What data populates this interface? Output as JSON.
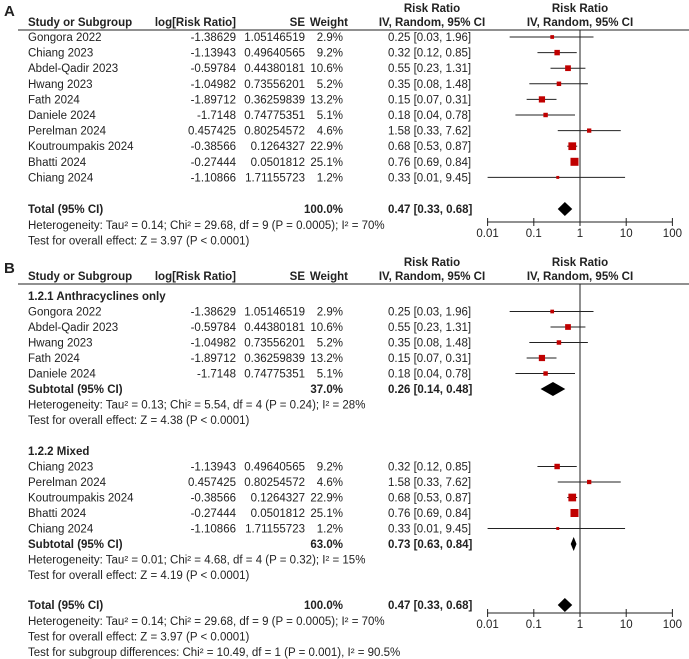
{
  "colors": {
    "marker": "#c00000",
    "diamond": "#000000",
    "line": "#222222"
  },
  "headers": {
    "study": "Study or Subgroup",
    "logrr": "log[Risk Ratio]",
    "se": "SE",
    "weight": "Weight",
    "rr_top": "Risk Ratio",
    "rr_bottom": "IV, Random, 95% CI",
    "plot_top": "Risk Ratio",
    "plot_bottom": "IV, Random, 95% CI"
  },
  "chart_data": [
    {
      "type": "forest",
      "panel": "A",
      "x_scale": "log",
      "xlim": [
        0.01,
        100
      ],
      "xticks": [
        "0.01",
        "0.1",
        "1",
        "10",
        "100"
      ],
      "reference_line": 1,
      "rows": [
        {
          "study": "Gongora 2022",
          "logrr": "-1.38629",
          "se": "1.05146519",
          "weight": "2.9%",
          "ci": "0.25 [0.03, 1.96]",
          "rr": 0.25,
          "lo": 0.03,
          "hi": 1.96
        },
        {
          "study": "Chiang 2023",
          "logrr": "-1.13943",
          "se": "0.49640565",
          "weight": "9.2%",
          "ci": "0.32 [0.12, 0.85]",
          "rr": 0.32,
          "lo": 0.12,
          "hi": 0.85
        },
        {
          "study": "Abdel-Qadir 2023",
          "logrr": "-0.59784",
          "se": "0.44380181",
          "weight": "10.6%",
          "ci": "0.55 [0.23, 1.31]",
          "rr": 0.55,
          "lo": 0.23,
          "hi": 1.31
        },
        {
          "study": "Hwang 2023",
          "logrr": "-1.04982",
          "se": "0.73556201",
          "weight": "5.2%",
          "ci": "0.35 [0.08, 1.48]",
          "rr": 0.35,
          "lo": 0.08,
          "hi": 1.48
        },
        {
          "study": "Fath 2024",
          "logrr": "-1.89712",
          "se": "0.36259839",
          "weight": "13.2%",
          "ci": "0.15 [0.07, 0.31]",
          "rr": 0.15,
          "lo": 0.07,
          "hi": 0.31
        },
        {
          "study": "Daniele 2024",
          "logrr": "-1.7148",
          "se": "0.74775351",
          "weight": "5.1%",
          "ci": "0.18 [0.04, 0.78]",
          "rr": 0.18,
          "lo": 0.04,
          "hi": 0.78
        },
        {
          "study": "Perelman 2024",
          "logrr": "0.457425",
          "se": "0.80254572",
          "weight": "4.6%",
          "ci": "1.58 [0.33, 7.62]",
          "rr": 1.58,
          "lo": 0.33,
          "hi": 7.62
        },
        {
          "study": "Koutroumpakis 2024",
          "logrr": "-0.38566",
          "se": "0.1264327",
          "weight": "22.9%",
          "ci": "0.68 [0.53, 0.87]",
          "rr": 0.68,
          "lo": 0.53,
          "hi": 0.87
        },
        {
          "study": "Bhatti 2024",
          "logrr": "-0.27444",
          "se": "0.0501812",
          "weight": "25.1%",
          "ci": "0.76 [0.69, 0.84]",
          "rr": 0.76,
          "lo": 0.69,
          "hi": 0.84
        },
        {
          "study": "Chiang 2024",
          "logrr": "-1.10866",
          "se": "1.71155723",
          "weight": "1.2%",
          "ci": "0.33 [0.01, 9.45]",
          "rr": 0.33,
          "lo": 0.01,
          "hi": 9.45
        }
      ],
      "total": {
        "label": "Total (95% CI)",
        "weight": "100.0%",
        "ci": "0.47 [0.33, 0.68]",
        "rr": 0.47,
        "lo": 0.33,
        "hi": 0.68
      },
      "notes": [
        "Heterogeneity: Tau² = 0.14; Chi² = 29.68, df = 9 (P = 0.0005); I² = 70%",
        "Test for overall effect: Z = 3.97 (P < 0.0001)"
      ]
    },
    {
      "type": "forest",
      "panel": "B",
      "x_scale": "log",
      "xlim": [
        0.01,
        100
      ],
      "xticks": [
        "0.01",
        "0.1",
        "1",
        "10",
        "100"
      ],
      "reference_line": 1,
      "subgroups": [
        {
          "label": "1.2.1 Anthracyclines only",
          "rows": [
            {
              "study": "Gongora 2022",
              "logrr": "-1.38629",
              "se": "1.05146519",
              "weight": "2.9%",
              "ci": "0.25 [0.03, 1.96]",
              "rr": 0.25,
              "lo": 0.03,
              "hi": 1.96
            },
            {
              "study": "Abdel-Qadir 2023",
              "logrr": "-0.59784",
              "se": "0.44380181",
              "weight": "10.6%",
              "ci": "0.55 [0.23, 1.31]",
              "rr": 0.55,
              "lo": 0.23,
              "hi": 1.31
            },
            {
              "study": "Hwang 2023",
              "logrr": "-1.04982",
              "se": "0.73556201",
              "weight": "5.2%",
              "ci": "0.35 [0.08, 1.48]",
              "rr": 0.35,
              "lo": 0.08,
              "hi": 1.48
            },
            {
              "study": "Fath 2024",
              "logrr": "-1.89712",
              "se": "0.36259839",
              "weight": "13.2%",
              "ci": "0.15 [0.07, 0.31]",
              "rr": 0.15,
              "lo": 0.07,
              "hi": 0.31
            },
            {
              "study": "Daniele 2024",
              "logrr": "-1.7148",
              "se": "0.74775351",
              "weight": "5.1%",
              "ci": "0.18 [0.04, 0.78]",
              "rr": 0.18,
              "lo": 0.04,
              "hi": 0.78
            }
          ],
          "subtotal": {
            "label": "Subtotal (95% CI)",
            "weight": "37.0%",
            "ci": "0.26 [0.14, 0.48]",
            "rr": 0.26,
            "lo": 0.14,
            "hi": 0.48
          },
          "notes": [
            "Heterogeneity: Tau² = 0.13; Chi² = 5.54, df = 4 (P = 0.24); I² = 28%",
            "Test for overall effect: Z = 4.38 (P < 0.0001)"
          ]
        },
        {
          "label": "1.2.2 Mixed",
          "rows": [
            {
              "study": "Chiang 2023",
              "logrr": "-1.13943",
              "se": "0.49640565",
              "weight": "9.2%",
              "ci": "0.32 [0.12, 0.85]",
              "rr": 0.32,
              "lo": 0.12,
              "hi": 0.85
            },
            {
              "study": "Perelman 2024",
              "logrr": "0.457425",
              "se": "0.80254572",
              "weight": "4.6%",
              "ci": "1.58 [0.33, 7.62]",
              "rr": 1.58,
              "lo": 0.33,
              "hi": 7.62
            },
            {
              "study": "Koutroumpakis 2024",
              "logrr": "-0.38566",
              "se": "0.1264327",
              "weight": "22.9%",
              "ci": "0.68 [0.53, 0.87]",
              "rr": 0.68,
              "lo": 0.53,
              "hi": 0.87
            },
            {
              "study": "Bhatti 2024",
              "logrr": "-0.27444",
              "se": "0.0501812",
              "weight": "25.1%",
              "ci": "0.76 [0.69, 0.84]",
              "rr": 0.76,
              "lo": 0.69,
              "hi": 0.84
            },
            {
              "study": "Chiang 2024",
              "logrr": "-1.10866",
              "se": "1.71155723",
              "weight": "1.2%",
              "ci": "0.33 [0.01, 9.45]",
              "rr": 0.33,
              "lo": 0.01,
              "hi": 9.45
            }
          ],
          "subtotal": {
            "label": "Subtotal (95% CI)",
            "weight": "63.0%",
            "ci": "0.73 [0.63, 0.84]",
            "rr": 0.73,
            "lo": 0.63,
            "hi": 0.84
          },
          "notes": [
            "Heterogeneity: Tau² = 0.01; Chi² = 4.68, df = 4 (P = 0.32); I² = 15%",
            "Test for overall effect: Z = 4.19 (P < 0.0001)"
          ]
        }
      ],
      "total": {
        "label": "Total (95% CI)",
        "weight": "100.0%",
        "ci": "0.47 [0.33, 0.68]",
        "rr": 0.47,
        "lo": 0.33,
        "hi": 0.68
      },
      "notes": [
        "Heterogeneity: Tau² = 0.14; Chi² = 29.68, df = 9 (P = 0.0005); I² = 70%",
        "Test for overall effect: Z = 3.97 (P < 0.0001)",
        "Test for subgroup differences: Chi² = 10.49, df = 1 (P = 0.001), I² = 90.5%"
      ]
    }
  ]
}
